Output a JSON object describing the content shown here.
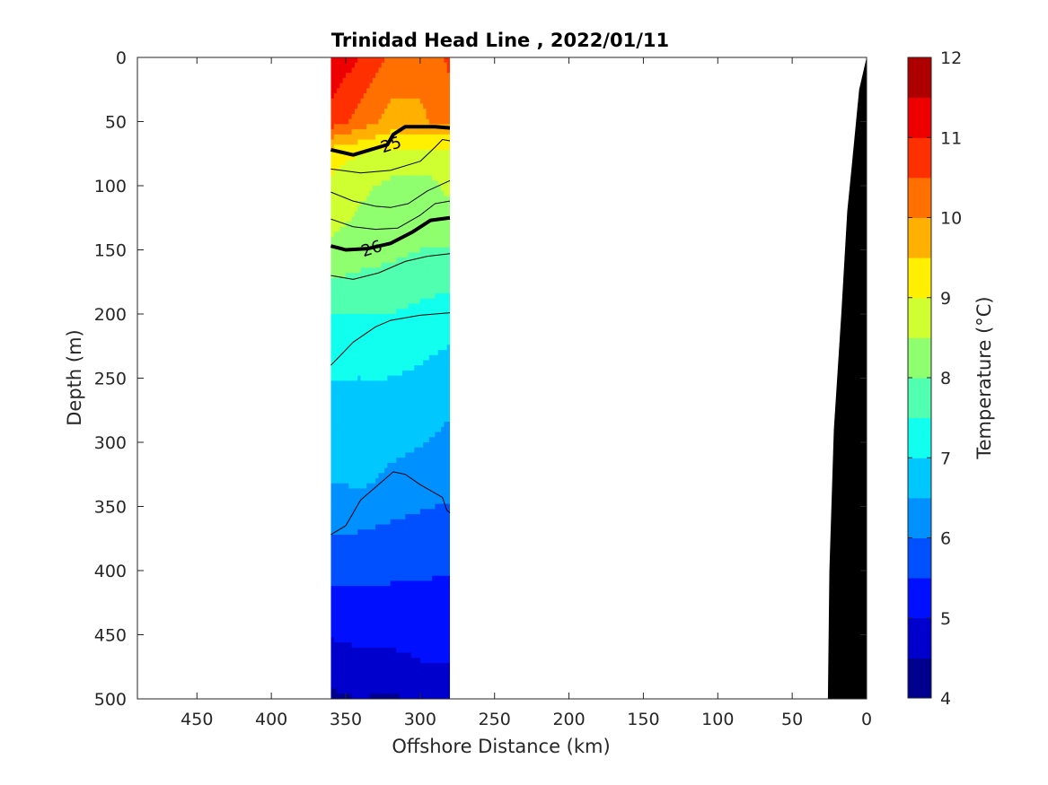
{
  "chart_data": {
    "type": "heatmap",
    "title": "Trinidad Head Line , 2022/01/11",
    "xlabel": "Offshore Distance (km)",
    "ylabel": "Depth (m)",
    "xlim": [
      490,
      0
    ],
    "ylim": [
      0,
      500
    ],
    "x_reversed": true,
    "y_reversed": true,
    "xticks": [
      450,
      400,
      350,
      300,
      250,
      200,
      150,
      100,
      50,
      0
    ],
    "yticks": [
      0,
      50,
      100,
      150,
      200,
      250,
      300,
      350,
      400,
      450,
      500
    ],
    "colorbar": {
      "label": "Temperature (°C)",
      "range": [
        4,
        12
      ],
      "ticks": [
        4,
        5,
        6,
        7,
        8,
        9,
        10,
        11,
        12
      ],
      "levels": [
        4,
        4.5,
        5,
        5.5,
        6,
        6.5,
        7,
        7.5,
        8,
        8.5,
        9,
        9.5,
        10,
        10.5,
        11,
        11.5,
        12
      ],
      "colors": [
        "#00008f",
        "#0000cc",
        "#0010ff",
        "#0050ff",
        "#0090ff",
        "#00c8ff",
        "#10ffef",
        "#50ffaf",
        "#90ff6f",
        "#cfff30",
        "#ffef00",
        "#ffb000",
        "#ff7000",
        "#ff3000",
        "#ef0000",
        "#af0000"
      ]
    },
    "data_region_km": [
      280,
      360
    ],
    "temperature_sections": [
      {
        "x_km": 360,
        "depths": [
          0,
          50,
          75,
          100,
          130,
          160,
          190,
          250,
          330,
          370,
          420,
          470,
          500
        ],
        "temps": [
          11.4,
          10.8,
          9.2,
          8.9,
          8.6,
          8.3,
          7.6,
          7.0,
          6.5,
          6.0,
          5.4,
          4.8,
          4.4
        ]
      },
      {
        "x_km": 340,
        "depths": [
          0,
          50,
          75,
          100,
          130,
          160,
          190,
          250,
          330,
          370,
          420,
          470,
          500
        ],
        "temps": [
          11.0,
          10.3,
          9.0,
          8.6,
          8.4,
          8.1,
          7.6,
          7.0,
          6.6,
          6.0,
          5.4,
          4.9,
          4.5
        ]
      },
      {
        "x_km": 320,
        "depths": [
          0,
          50,
          75,
          100,
          130,
          160,
          190,
          250,
          330,
          370,
          420,
          470,
          500
        ],
        "temps": [
          10.4,
          9.8,
          8.8,
          8.4,
          8.3,
          8.0,
          7.6,
          7.0,
          6.4,
          5.9,
          5.4,
          4.9,
          4.4
        ]
      },
      {
        "x_km": 300,
        "depths": [
          0,
          50,
          75,
          100,
          130,
          160,
          190,
          250,
          330,
          370,
          420,
          470,
          500
        ],
        "temps": [
          10.2,
          9.9,
          8.8,
          8.3,
          8.2,
          7.9,
          7.5,
          6.9,
          6.3,
          5.8,
          5.4,
          5.0,
          4.6
        ]
      },
      {
        "x_km": 280,
        "depths": [
          0,
          50,
          75,
          100,
          130,
          160,
          190,
          250,
          330,
          370,
          420,
          470,
          500
        ],
        "temps": [
          10.6,
          10.2,
          8.7,
          8.6,
          8.3,
          7.8,
          7.4,
          6.7,
          6.2,
          5.7,
          5.4,
          5.0,
          4.6
        ]
      }
    ],
    "density_contours": [
      {
        "label": "25",
        "bold": true,
        "points": [
          [
            360,
            72
          ],
          [
            345,
            76
          ],
          [
            322,
            68
          ],
          [
            318,
            60
          ],
          [
            310,
            54
          ],
          [
            290,
            54
          ],
          [
            280,
            55
          ]
        ]
      },
      {
        "label": "",
        "bold": false,
        "points": [
          [
            360,
            87
          ],
          [
            340,
            90
          ],
          [
            320,
            88
          ],
          [
            300,
            81
          ],
          [
            290,
            70
          ],
          [
            285,
            64
          ],
          [
            280,
            65
          ]
        ]
      },
      {
        "label": "",
        "bold": false,
        "points": [
          [
            360,
            105
          ],
          [
            345,
            112
          ],
          [
            330,
            116
          ],
          [
            320,
            117
          ],
          [
            308,
            114
          ],
          [
            295,
            104
          ],
          [
            280,
            96
          ]
        ]
      },
      {
        "label": "",
        "bold": false,
        "points": [
          [
            360,
            126
          ],
          [
            345,
            132
          ],
          [
            330,
            134
          ],
          [
            315,
            133
          ],
          [
            300,
            123
          ],
          [
            290,
            114
          ],
          [
            280,
            112
          ]
        ]
      },
      {
        "label": "26",
        "bold": true,
        "points": [
          [
            360,
            147
          ],
          [
            350,
            150
          ],
          [
            335,
            149
          ],
          [
            320,
            145
          ],
          [
            305,
            136
          ],
          [
            293,
            127
          ],
          [
            280,
            125
          ]
        ]
      },
      {
        "label": "",
        "bold": false,
        "points": [
          [
            360,
            170
          ],
          [
            345,
            173
          ],
          [
            328,
            168
          ],
          [
            310,
            159
          ],
          [
            295,
            155
          ],
          [
            280,
            153
          ]
        ]
      },
      {
        "label": "",
        "bold": false,
        "points": [
          [
            360,
            240
          ],
          [
            345,
            222
          ],
          [
            330,
            210
          ],
          [
            320,
            205
          ],
          [
            300,
            201
          ],
          [
            280,
            199
          ]
        ]
      },
      {
        "label": "",
        "bold": false,
        "points": [
          [
            360,
            372
          ],
          [
            350,
            365
          ],
          [
            340,
            345
          ],
          [
            325,
            330
          ],
          [
            318,
            323
          ],
          [
            310,
            325
          ],
          [
            300,
            333
          ],
          [
            285,
            343
          ],
          [
            282,
            353
          ],
          [
            280,
            355
          ]
        ]
      },
      {
        "label": "",
        "bold": false,
        "points": [
          [
            288,
            500
          ],
          [
            280,
            500
          ]
        ]
      }
    ],
    "bathymetry": {
      "color": "#000000",
      "points": [
        [
          0,
          0
        ],
        [
          5,
          25
        ],
        [
          10,
          85
        ],
        [
          13,
          120
        ],
        [
          17,
          200
        ],
        [
          22,
          290
        ],
        [
          25,
          400
        ],
        [
          26,
          500
        ]
      ]
    }
  }
}
